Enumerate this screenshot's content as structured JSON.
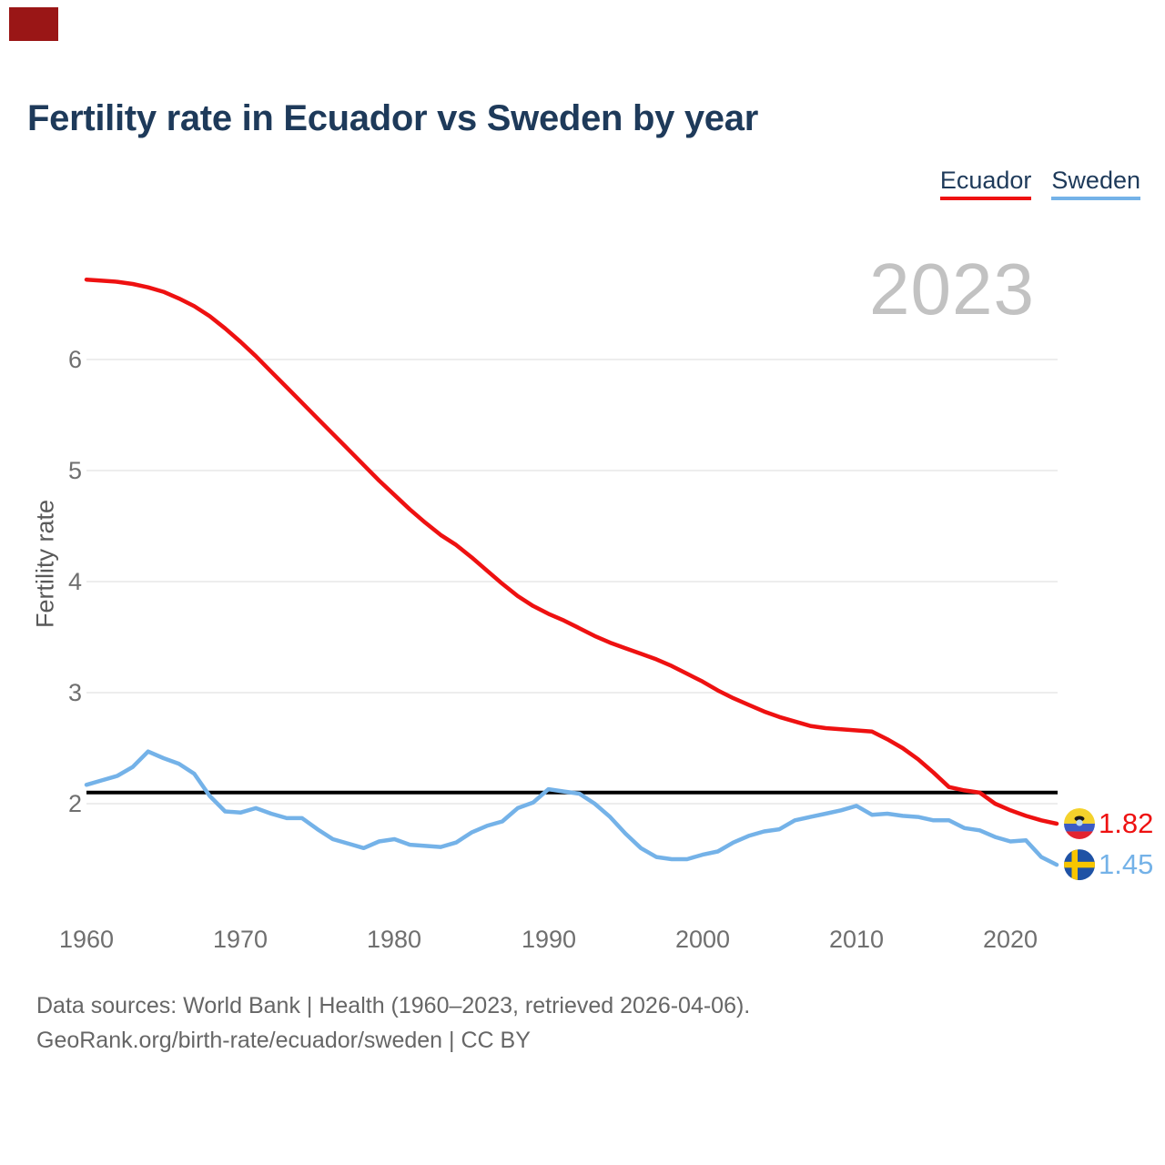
{
  "top_left_swatch_color": "#9a1616",
  "header": {
    "title": "Fertility rate in Ecuador vs Sweden by year"
  },
  "legend": {
    "items": [
      {
        "label": "Ecuador",
        "color": "#ee1111"
      },
      {
        "label": "Sweden",
        "color": "#74b2e8"
      }
    ]
  },
  "watermark_year": "2023",
  "chart_data": {
    "type": "line",
    "title": "Fertility rate in Ecuador vs Sweden by year",
    "xlabel": "",
    "ylabel": "Fertility rate",
    "grid": true,
    "legend_position": "top-right",
    "axis": {
      "ytick_labels": [
        "2",
        "3",
        "4",
        "5",
        "6"
      ],
      "ytick_values": [
        2,
        3,
        4,
        5,
        6
      ],
      "xtick_labels": [
        "1960",
        "1970",
        "1980",
        "1990",
        "2000",
        "2010",
        "2020"
      ],
      "xtick_values": [
        1960,
        1970,
        1980,
        1990,
        2000,
        2010,
        2020
      ],
      "xlim": [
        1960,
        2023
      ],
      "ylim": [
        1.3,
        6.85
      ]
    },
    "reference_line": {
      "value": 2.1,
      "color": "#000000"
    },
    "x": [
      1960,
      1961,
      1962,
      1963,
      1964,
      1965,
      1966,
      1967,
      1968,
      1969,
      1970,
      1971,
      1972,
      1973,
      1974,
      1975,
      1976,
      1977,
      1978,
      1979,
      1980,
      1981,
      1982,
      1983,
      1984,
      1985,
      1986,
      1987,
      1988,
      1989,
      1990,
      1991,
      1992,
      1993,
      1994,
      1995,
      1996,
      1997,
      1998,
      1999,
      2000,
      2001,
      2002,
      2003,
      2004,
      2005,
      2006,
      2007,
      2008,
      2009,
      2010,
      2011,
      2012,
      2013,
      2014,
      2015,
      2016,
      2017,
      2018,
      2019,
      2020,
      2021,
      2022,
      2023
    ],
    "series": [
      {
        "name": "Ecuador",
        "color": "#ee1111",
        "end_label": "1.82",
        "values": [
          6.72,
          6.71,
          6.7,
          6.68,
          6.65,
          6.61,
          6.55,
          6.48,
          6.39,
          6.28,
          6.16,
          6.03,
          5.89,
          5.75,
          5.61,
          5.47,
          5.33,
          5.19,
          5.05,
          4.91,
          4.78,
          4.65,
          4.53,
          4.42,
          4.33,
          4.22,
          4.1,
          3.98,
          3.87,
          3.78,
          3.71,
          3.65,
          3.58,
          3.51,
          3.45,
          3.4,
          3.35,
          3.3,
          3.24,
          3.17,
          3.1,
          3.02,
          2.95,
          2.89,
          2.83,
          2.78,
          2.74,
          2.7,
          2.68,
          2.67,
          2.66,
          2.65,
          2.58,
          2.5,
          2.4,
          2.28,
          2.15,
          2.12,
          2.1,
          2.0,
          1.94,
          1.89,
          1.85,
          1.82
        ]
      },
      {
        "name": "Sweden",
        "color": "#74b2e8",
        "end_label": "1.45",
        "values": [
          2.17,
          2.21,
          2.25,
          2.33,
          2.47,
          2.41,
          2.36,
          2.27,
          2.07,
          1.93,
          1.92,
          1.96,
          1.91,
          1.87,
          1.87,
          1.77,
          1.68,
          1.64,
          1.6,
          1.66,
          1.68,
          1.63,
          1.62,
          1.61,
          1.65,
          1.74,
          1.8,
          1.84,
          1.96,
          2.01,
          2.13,
          2.11,
          2.09,
          2.0,
          1.88,
          1.73,
          1.6,
          1.52,
          1.5,
          1.5,
          1.54,
          1.57,
          1.65,
          1.71,
          1.75,
          1.77,
          1.85,
          1.88,
          1.91,
          1.94,
          1.98,
          1.9,
          1.91,
          1.89,
          1.88,
          1.85,
          1.85,
          1.78,
          1.76,
          1.7,
          1.66,
          1.67,
          1.52,
          1.45
        ]
      }
    ]
  },
  "footer": {
    "line1": "Data sources: World Bank | Health (1960–2023, retrieved 2026-04-06).",
    "line2": "GeoRank.org/birth-rate/ecuador/sweden | CC BY"
  }
}
